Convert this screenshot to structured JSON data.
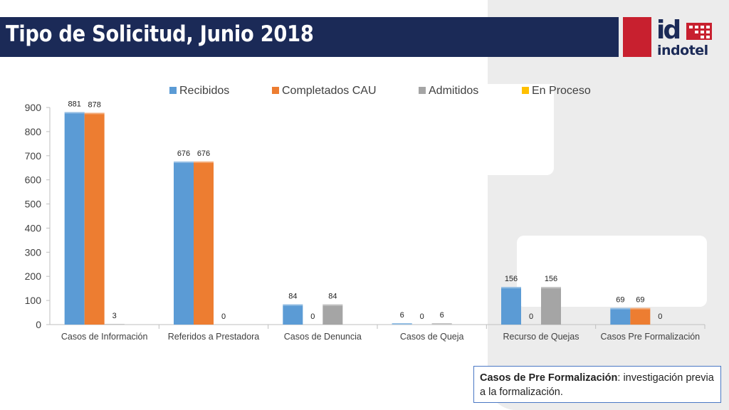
{
  "slide": {
    "title": "Tipo de Solicitud, Junio 2018",
    "logo_text": "indotel",
    "logo_mark": "id",
    "note": {
      "term": "Casos de Pre Formalización",
      "definition": ": investigación previa a la formalización."
    }
  },
  "colors": {
    "header": "#1b2a57",
    "logo_red": "#c8202f"
  },
  "chart_data": {
    "type": "bar",
    "categories": [
      "Casos de Información",
      "Referidos a Prestadora",
      "Casos de Denuncia",
      "Casos de Queja",
      "Recurso de Quejas",
      "Casos Pre Formalización"
    ],
    "series": [
      {
        "name": "Recibidos",
        "color": "#5b9bd5",
        "values": [
          881,
          676,
          84,
          6,
          156,
          69
        ]
      },
      {
        "name": "Completados CAU",
        "color": "#ed7d31",
        "values": [
          878,
          676,
          0,
          0,
          0,
          69
        ]
      },
      {
        "name": "Admitidos",
        "color": "#a5a5a5",
        "values": [
          3,
          0,
          84,
          6,
          156,
          0
        ]
      },
      {
        "name": "En Proceso",
        "color": "#ffc000",
        "values": [
          0,
          0,
          0,
          0,
          0,
          0
        ]
      }
    ],
    "ylim": [
      0,
      900
    ],
    "yticks": [
      0,
      100,
      200,
      300,
      400,
      500,
      600,
      700,
      800,
      900
    ],
    "legend": "top",
    "grid": false
  }
}
